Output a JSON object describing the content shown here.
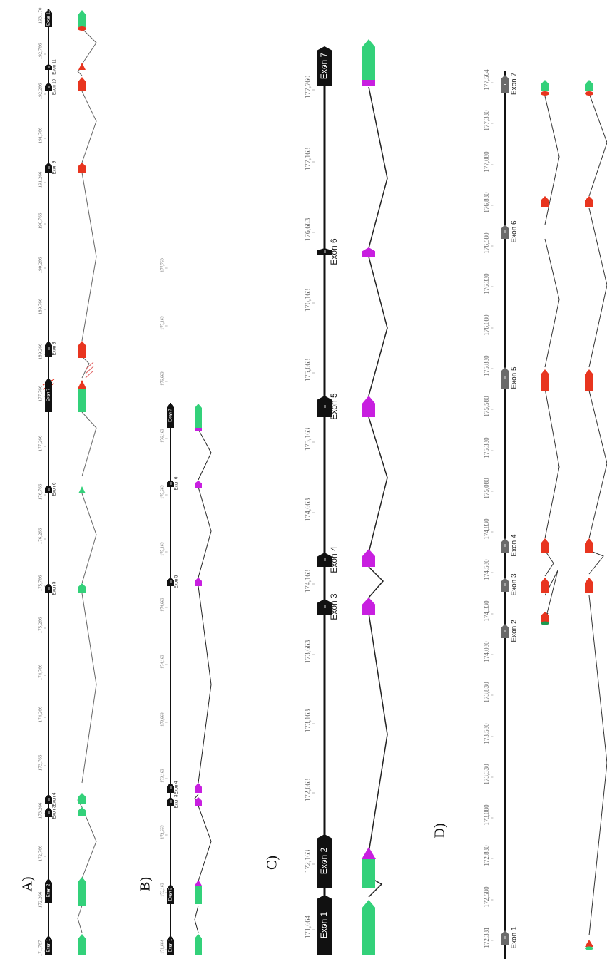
{
  "colors": {
    "black_exon": "#111111",
    "grey_exon": "#6a6a6a",
    "green": "#33d17a",
    "green_dark": "#1c9a50",
    "red": "#e8351f",
    "magenta": "#c81fe0",
    "axis": "#111111",
    "grey_line": "#666666"
  },
  "panels": [
    {
      "id": "A",
      "label": "A)",
      "ticks": [
        "171,767",
        "172,266",
        "172,766",
        "173,266",
        "173,766",
        "174,266",
        "174,766",
        "175,266",
        "175,766",
        "176,266",
        "176,766",
        "177,266",
        "177,766",
        "189,266",
        "189,766",
        "190,266",
        "190,766",
        "191,266",
        "191,766",
        "192,266",
        "192,766",
        "193,170"
      ],
      "exons": [
        {
          "name": "Exon 1",
          "label": "Exon 1"
        },
        {
          "name": "Exon 2",
          "label": "Exon 2"
        },
        {
          "name": "Exon 3",
          "label": "Exon 3"
        },
        {
          "name": "Exon 4",
          "label": "Exon 4"
        },
        {
          "name": "Exon 5",
          "label": "Exon 5"
        },
        {
          "name": "Exon 6",
          "label": "Exon 6"
        },
        {
          "name": "Exon 7",
          "label": "Exon 7"
        },
        {
          "name": "Exon 8",
          "label": "Exon 8"
        },
        {
          "name": "Exon 9",
          "label": "Exon 9"
        },
        {
          "name": "Exon 10",
          "label": "Exon 10"
        },
        {
          "name": "Exon 11",
          "label": "Exon 11"
        },
        {
          "name": "Exon 12",
          "label": "Exon 12"
        }
      ]
    },
    {
      "id": "B",
      "label": "B)",
      "ticks": [
        "171,664",
        "172,163",
        "172,663",
        "173,163",
        "173,663",
        "174,163",
        "174,663",
        "175,163",
        "175,663",
        "176,163",
        "176,663",
        "177,163",
        "177,760"
      ],
      "exons": [
        {
          "label": "Exon 1"
        },
        {
          "label": "Exon 2"
        },
        {
          "label": "Exon 3"
        },
        {
          "label": "Exon 4"
        },
        {
          "label": "Exon 5"
        },
        {
          "label": "Exon 6"
        },
        {
          "label": "Exon 7"
        }
      ]
    },
    {
      "id": "C",
      "label": "C)",
      "ticks": [
        "171,664",
        "172,163",
        "172,663",
        "173,163",
        "173,663",
        "174,163",
        "174,663",
        "175,163",
        "175,663",
        "176,163",
        "176,663",
        "177,163",
        "177,760"
      ],
      "exons": [
        {
          "label": "Exon 1"
        },
        {
          "label": "Exon 2"
        },
        {
          "label": "Exon 3"
        },
        {
          "label": "Exon 4"
        },
        {
          "label": "Exon 5"
        },
        {
          "label": "Exon 6"
        },
        {
          "label": "Exon 7"
        }
      ]
    },
    {
      "id": "D",
      "label": "D)",
      "ticks": [
        "172,331",
        "172,580",
        "172,830",
        "173,080",
        "173,330",
        "173,580",
        "173,830",
        "174,080",
        "174,330",
        "174,580",
        "174,830",
        "175,080",
        "175,330",
        "175,580",
        "175,830",
        "176,080",
        "176,330",
        "176,580",
        "176,830",
        "177,080",
        "177,330",
        "177,564"
      ],
      "exons": [
        {
          "label": "Exon 1"
        },
        {
          "label": "Exon 2"
        },
        {
          "label": "Exon 3"
        },
        {
          "label": "Exon 4"
        },
        {
          "label": "Exon 5"
        },
        {
          "label": "Exon 6"
        },
        {
          "label": "Exon 7"
        }
      ]
    }
  ]
}
